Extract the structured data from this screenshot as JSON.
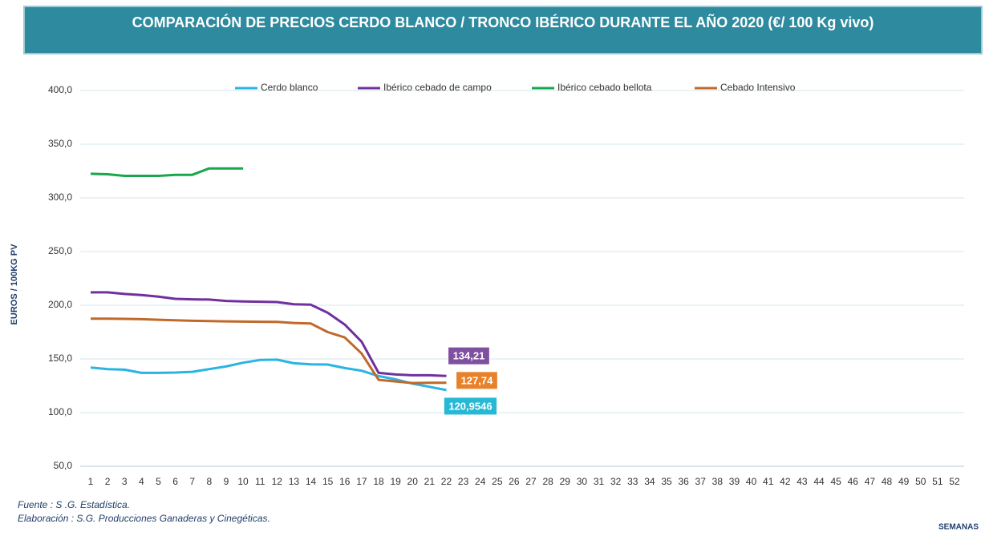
{
  "chart_data": {
    "type": "line",
    "title": "COMPARACIÓN DE PRECIOS CERDO BLANCO / TRONCO IBÉRICO DURANTE EL AÑO 2020 (€/ 100 Kg vivo)",
    "y_label": "EUROS / 100KG PV",
    "x_label": "SEMANAS",
    "source": "Fuente :  S .G. Estadística.",
    "credit": "Elaboración : S.G. Producciones Ganaderas y Cinegéticas.",
    "categories": [
      "1",
      "2",
      "3",
      "4",
      "5",
      "6",
      "7",
      "8",
      "9",
      "10",
      "11",
      "12",
      "13",
      "14",
      "15",
      "16",
      "17",
      "18",
      "19",
      "20",
      "21",
      "22",
      "23",
      "24",
      "25",
      "26",
      "27",
      "28",
      "29",
      "30",
      "31",
      "32",
      "33",
      "34",
      "35",
      "36",
      "37",
      "38",
      "39",
      "40",
      "41",
      "42",
      "43",
      "44",
      "45",
      "46",
      "47",
      "48",
      "49",
      "50",
      "51",
      "52"
    ],
    "ylim": [
      50,
      400
    ],
    "yticks": [
      {
        "value": 50,
        "label": "50,0"
      },
      {
        "value": 100,
        "label": "100,0"
      },
      {
        "value": 150,
        "label": "150,0"
      },
      {
        "value": 200,
        "label": "200,0"
      },
      {
        "value": 250,
        "label": "250,0"
      },
      {
        "value": 300,
        "label": "300,0"
      },
      {
        "value": 350,
        "label": "350,0"
      },
      {
        "value": 400,
        "label": "400,0"
      }
    ],
    "grid": true,
    "legend": "top",
    "series": [
      {
        "name": "Cerdo blanco",
        "color": "#29b4e2",
        "values": [
          142,
          140.5,
          140,
          137,
          137,
          137.3,
          138,
          140.5,
          143,
          146.5,
          149,
          149.3,
          146,
          145,
          144.8,
          141.5,
          139,
          134,
          131,
          127,
          124,
          120.9546,
          null,
          null,
          null,
          null,
          null,
          null,
          null,
          null,
          null,
          null,
          null,
          null,
          null,
          null,
          null,
          null,
          null,
          null,
          null,
          null,
          null,
          null,
          null,
          null,
          null,
          null,
          null,
          null,
          null,
          null
        ],
        "value_labels": [
          null,
          null,
          null,
          null,
          null,
          null,
          null,
          null,
          null,
          null,
          null,
          null,
          null,
          null,
          null,
          null,
          null,
          null,
          null,
          null,
          null,
          "120,9546",
          null,
          null,
          null,
          null,
          null,
          null,
          null,
          null,
          null,
          null,
          null,
          null,
          null,
          null,
          null,
          null,
          null,
          null,
          null,
          null,
          null,
          null,
          null,
          null,
          null,
          null,
          null,
          null,
          null,
          null
        ]
      },
      {
        "name": "Ibérico cebado de campo",
        "color": "#7030a0",
        "values": [
          212,
          212,
          210.5,
          209.5,
          208,
          206,
          205.5,
          205.3,
          204,
          203.5,
          203.3,
          203,
          201,
          200.5,
          193,
          182,
          166,
          137,
          135.5,
          134.8,
          134.8,
          134.21,
          null,
          null,
          null,
          null,
          null,
          null,
          null,
          null,
          null,
          null,
          null,
          null,
          null,
          null,
          null,
          null,
          null,
          null,
          null,
          null,
          null,
          null,
          null,
          null,
          null,
          null,
          null,
          null,
          null,
          null
        ],
        "value_labels": [
          null,
          null,
          null,
          null,
          null,
          null,
          null,
          null,
          null,
          null,
          null,
          null,
          null,
          null,
          null,
          null,
          null,
          null,
          null,
          null,
          null,
          "134,21",
          null,
          null,
          null,
          null,
          null,
          null,
          null,
          null,
          null,
          null,
          null,
          null,
          null,
          null,
          null,
          null,
          null,
          null,
          null,
          null,
          null,
          null,
          null,
          null,
          null,
          null,
          null,
          null,
          null,
          null
        ]
      },
      {
        "name": "Ibérico cebado bellota",
        "color": "#1aa64a",
        "values": [
          322.5,
          322,
          320.5,
          320.5,
          320.5,
          321.5,
          321.5,
          327.5,
          327.5,
          327.5,
          null,
          null,
          null,
          null,
          null,
          null,
          null,
          null,
          null,
          null,
          null,
          null,
          null,
          null,
          null,
          null,
          null,
          null,
          null,
          null,
          null,
          null,
          null,
          null,
          null,
          null,
          null,
          null,
          null,
          null,
          null,
          null,
          null,
          null,
          null,
          null,
          null,
          null,
          null,
          null,
          null,
          null
        ]
      },
      {
        "name": "Cebado Intensivo",
        "color": "#c0692a",
        "values": [
          187.5,
          187.5,
          187.3,
          187,
          186.5,
          186,
          185.5,
          185.3,
          185,
          184.8,
          184.6,
          184.5,
          183.5,
          183,
          175,
          170,
          155,
          130.5,
          129,
          127.5,
          127.8,
          127.74,
          null,
          null,
          null,
          null,
          null,
          null,
          null,
          null,
          null,
          null,
          null,
          null,
          null,
          null,
          null,
          null,
          null,
          null,
          null,
          null,
          null,
          null,
          null,
          null,
          null,
          null,
          null,
          null,
          null,
          null
        ],
        "value_labels": [
          null,
          null,
          null,
          null,
          null,
          null,
          null,
          null,
          null,
          null,
          null,
          null,
          null,
          null,
          null,
          null,
          null,
          null,
          null,
          null,
          null,
          "127,74",
          null,
          null,
          null,
          null,
          null,
          null,
          null,
          null,
          null,
          null,
          null,
          null,
          null,
          null,
          null,
          null,
          null,
          null,
          null,
          null,
          null,
          null,
          null,
          null,
          null,
          null,
          null,
          null,
          null,
          null
        ]
      }
    ]
  }
}
